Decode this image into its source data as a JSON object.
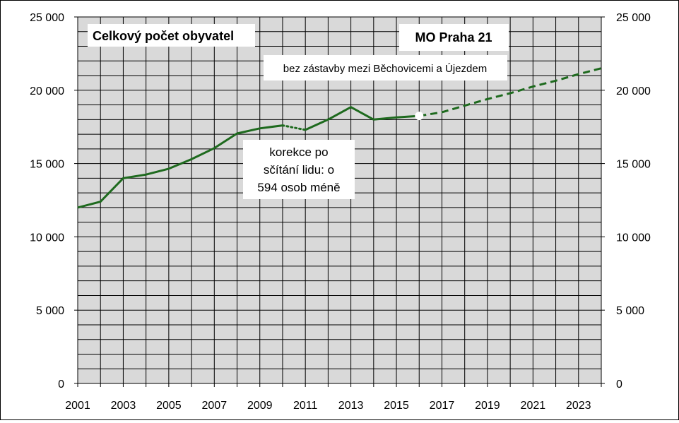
{
  "chart_data": {
    "type": "line",
    "title": "Celkový počet obyvatel",
    "subtitle": "MO Praha 21",
    "xlim": [
      2001,
      2024
    ],
    "ylim": [
      0,
      25000
    ],
    "y_ticks": [
      0,
      5000,
      10000,
      15000,
      20000,
      25000
    ],
    "y_tick_labels": [
      "0",
      "5 000",
      "10 000",
      "15 000",
      "20 000",
      "25 000"
    ],
    "x_tick_labels": [
      "2001",
      "2003",
      "2005",
      "2007",
      "2009",
      "2011",
      "2013",
      "2015",
      "2017",
      "2019",
      "2021",
      "2023"
    ],
    "grid": true,
    "series": [
      {
        "style": "solid",
        "color": "#1e6a1e",
        "points": [
          [
            2001,
            12000
          ],
          [
            2002,
            12400
          ],
          [
            2003,
            14000
          ],
          [
            2004,
            14250
          ],
          [
            2005,
            14650
          ],
          [
            2006,
            15300
          ],
          [
            2007,
            16050
          ],
          [
            2008,
            17050
          ],
          [
            2009,
            17400
          ],
          [
            2010,
            17600
          ]
        ]
      },
      {
        "style": "dotted",
        "color": "#1e6a1e",
        "points": [
          [
            2010,
            17600
          ],
          [
            2011,
            17300
          ]
        ]
      },
      {
        "style": "solid",
        "color": "#1e6a1e",
        "points": [
          [
            2011,
            17300
          ],
          [
            2012,
            18000
          ],
          [
            2013,
            18850
          ],
          [
            2014,
            18000
          ],
          [
            2015,
            18150
          ],
          [
            2016,
            18250
          ]
        ]
      },
      {
        "style": "dashed",
        "color": "#1e6a1e",
        "points": [
          [
            2016,
            18250
          ],
          [
            2017,
            18500
          ],
          [
            2018,
            18950
          ],
          [
            2019,
            19400
          ],
          [
            2020,
            19800
          ],
          [
            2021,
            20250
          ],
          [
            2022,
            20650
          ],
          [
            2023,
            21100
          ],
          [
            2024,
            21500
          ]
        ]
      }
    ],
    "marker": {
      "x": 2016,
      "y": 18250,
      "color": "#ffffff"
    },
    "annotations": [
      {
        "key": "projection",
        "lines": [
          "bez zástavby mezi Běchovicemi a Újezdem"
        ]
      },
      {
        "key": "correction",
        "lines": [
          "korekce po",
          "sčítání lidu: o",
          "594 osob méně"
        ]
      }
    ]
  }
}
